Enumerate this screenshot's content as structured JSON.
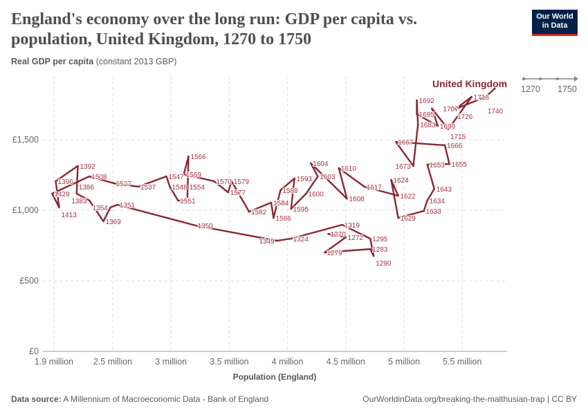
{
  "header": {
    "title": "England's economy over the long run: GDP per capita vs. population, United Kingdom, 1270 to 1750",
    "subtitle_bold": "Real GDP per capita",
    "subtitle_rest": " (constant 2013 GBP)",
    "logo_line1": "Our World",
    "logo_line2": "in Data"
  },
  "timeline": {
    "start": "1270",
    "end": "1750"
  },
  "footer": {
    "source_label": "Data source:",
    "source": " A Millennium of Macroeconomic Data - Bank of England",
    "link": "OurWorldinData.org/breaking-the-malthusian-trap | CC BY"
  },
  "colors": {
    "series": "#8c2433",
    "grid": "#dddddd",
    "logo_bg": "#002147",
    "logo_accent": "#ce261e"
  },
  "chart_data": {
    "type": "line",
    "subtype": "connected-scatter",
    "xlabel": "Population (England)",
    "ylabel": "Real GDP per capita (constant 2013 GBP)",
    "xlim": [
      1.9,
      5.9
    ],
    "ylim": [
      0,
      1940
    ],
    "x_ticks": [
      {
        "v": 1.9,
        "label": "1.9 million"
      },
      {
        "v": 2.5,
        "label": "2.5 million"
      },
      {
        "v": 3,
        "label": "3 million"
      },
      {
        "v": 3.5,
        "label": "3.5 million"
      },
      {
        "v": 4,
        "label": "4 million"
      },
      {
        "v": 4.5,
        "label": "4.5 million"
      },
      {
        "v": 5,
        "label": "5 million"
      },
      {
        "v": 5.5,
        "label": "5.5 million"
      }
    ],
    "y_ticks": [
      {
        "v": 0,
        "label": "£0"
      },
      {
        "v": 500,
        "label": "£500"
      },
      {
        "v": 1000,
        "label": "£1,000"
      },
      {
        "v": 1500,
        "label": "£1,500"
      }
    ],
    "grid": true,
    "series": [
      {
        "name": "United Kingdom",
        "points": [
          {
            "year": 1270,
            "pop": 4.35,
            "gdp": 833
          },
          {
            "year": 1272,
            "pop": 4.5,
            "gdp": 809
          },
          {
            "year": 1279,
            "pop": 4.32,
            "gdp": 701
          },
          {
            "year": 1283,
            "pop": 4.71,
            "gdp": 725
          },
          {
            "year": 1290,
            "pop": 4.74,
            "gdp": 676
          },
          {
            "year": 1295,
            "pop": 4.71,
            "gdp": 799
          },
          {
            "year": 1319,
            "pop": 4.47,
            "gdp": 897
          },
          {
            "year": 1324,
            "pop": 4.03,
            "gdp": 799
          },
          {
            "year": 1349,
            "pop": 3.91,
            "gdp": 784
          },
          {
            "year": 1350,
            "pop": 3.21,
            "gdp": 892
          },
          {
            "year": 1351,
            "pop": 2.54,
            "gdp": 1039
          },
          {
            "year": 1354,
            "pop": 2.48,
            "gdp": 1020
          },
          {
            "year": 1369,
            "pop": 2.42,
            "gdp": 922
          },
          {
            "year": 1383,
            "pop": 2.3,
            "gdp": 1069
          },
          {
            "year": 1386,
            "pop": 2.19,
            "gdp": 1118
          },
          {
            "year": 1392,
            "pop": 2.2,
            "gdp": 1314
          },
          {
            "year": 1396,
            "pop": 2.01,
            "gdp": 1206
          },
          {
            "year": 1413,
            "pop": 2.04,
            "gdp": 1020
          },
          {
            "year": 1429,
            "pop": 1.98,
            "gdp": 1118
          },
          {
            "year": 1508,
            "pop": 2.3,
            "gdp": 1240
          },
          {
            "year": 1527,
            "pop": 2.51,
            "gdp": 1191
          },
          {
            "year": 1537,
            "pop": 2.72,
            "gdp": 1167
          },
          {
            "year": 1547,
            "pop": 2.96,
            "gdp": 1240
          },
          {
            "year": 1548,
            "pop": 2.99,
            "gdp": 1167
          },
          {
            "year": 1551,
            "pop": 3.06,
            "gdp": 1069
          },
          {
            "year": 1554,
            "pop": 3.14,
            "gdp": 1069
          },
          {
            "year": 1566,
            "pop": 3.15,
            "gdp": 1382
          },
          {
            "year": 1569,
            "pop": 3.11,
            "gdp": 1255
          },
          {
            "year": 1570,
            "pop": 3.37,
            "gdp": 1206
          },
          {
            "year": 1577,
            "pop": 3.49,
            "gdp": 1127
          },
          {
            "year": 1579,
            "pop": 3.52,
            "gdp": 1206
          },
          {
            "year": 1582,
            "pop": 3.67,
            "gdp": 990
          },
          {
            "year": 1584,
            "pop": 3.86,
            "gdp": 1054
          },
          {
            "year": 1586,
            "pop": 3.88,
            "gdp": 946
          },
          {
            "year": 1588,
            "pop": 3.94,
            "gdp": 1142
          },
          {
            "year": 1593,
            "pop": 4.06,
            "gdp": 1226
          },
          {
            "year": 1595,
            "pop": 4.03,
            "gdp": 1010
          },
          {
            "year": 1600,
            "pop": 4.16,
            "gdp": 1118
          },
          {
            "year": 1603,
            "pop": 4.26,
            "gdp": 1240
          },
          {
            "year": 1604,
            "pop": 4.2,
            "gdp": 1333
          },
          {
            "year": 1608,
            "pop": 4.51,
            "gdp": 1083
          },
          {
            "year": 1610,
            "pop": 4.44,
            "gdp": 1299
          },
          {
            "year": 1617,
            "pop": 4.66,
            "gdp": 1167
          },
          {
            "year": 1622,
            "pop": 4.95,
            "gdp": 1103
          },
          {
            "year": 1624,
            "pop": 4.89,
            "gdp": 1216
          },
          {
            "year": 1629,
            "pop": 4.95,
            "gdp": 946
          },
          {
            "year": 1633,
            "pop": 5.17,
            "gdp": 995
          },
          {
            "year": 1634,
            "pop": 5.2,
            "gdp": 1069
          },
          {
            "year": 1643,
            "pop": 5.26,
            "gdp": 1152
          },
          {
            "year": 1653,
            "pop": 5.2,
            "gdp": 1324
          },
          {
            "year": 1655,
            "pop": 5.39,
            "gdp": 1328
          },
          {
            "year": 1666,
            "pop": 5.35,
            "gdp": 1461
          },
          {
            "year": 1667,
            "pop": 4.93,
            "gdp": 1485
          },
          {
            "year": 1673,
            "pop": 5.08,
            "gdp": 1314
          },
          {
            "year": 1683,
            "pop": 5.12,
            "gdp": 1608
          },
          {
            "year": 1692,
            "pop": 5.11,
            "gdp": 1779
          },
          {
            "year": 1695,
            "pop": 5.11,
            "gdp": 1681
          },
          {
            "year": 1699,
            "pop": 5.29,
            "gdp": 1598
          },
          {
            "year": 1707,
            "pop": 5.24,
            "gdp": 1721
          },
          {
            "year": 1715,
            "pop": 5.38,
            "gdp": 1574
          },
          {
            "year": 1718,
            "pop": 5.58,
            "gdp": 1804
          },
          {
            "year": 1726,
            "pop": 5.44,
            "gdp": 1716
          },
          {
            "year": 1740,
            "pop": 5.7,
            "gdp": 1804
          },
          {
            "year": 1750,
            "pop": 5.78,
            "gdp": 1863
          }
        ]
      }
    ]
  }
}
